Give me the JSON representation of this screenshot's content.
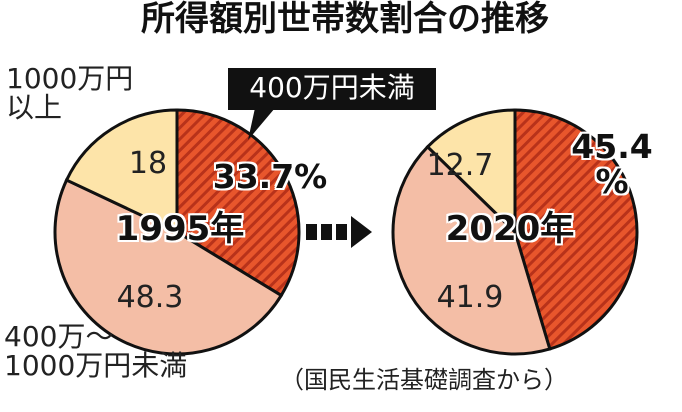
{
  "chart_data": [
    {
      "type": "pie",
      "title": "所得額別世帯数割合の推移",
      "categories": [
        "400万円未満",
        "400万～\n1000万円未満",
        "1000万円\n以上"
      ],
      "center_label": "1995年",
      "values": [
        33.7,
        48.3,
        18
      ],
      "value_labels": [
        "33.7%",
        "48.3",
        "18"
      ],
      "colors": [
        "#e8562c",
        "#f4bea6",
        "#fde4a9"
      ]
    },
    {
      "type": "pie",
      "center_label": "2020年",
      "values": [
        45.4,
        41.9,
        12.7
      ],
      "value_labels": [
        "45.4\n%",
        "41.9",
        "12.7"
      ],
      "colors": [
        "#e8562c",
        "#f4bea6",
        "#fde4a9"
      ],
      "note": "（国民生活基礎調査から）"
    }
  ]
}
